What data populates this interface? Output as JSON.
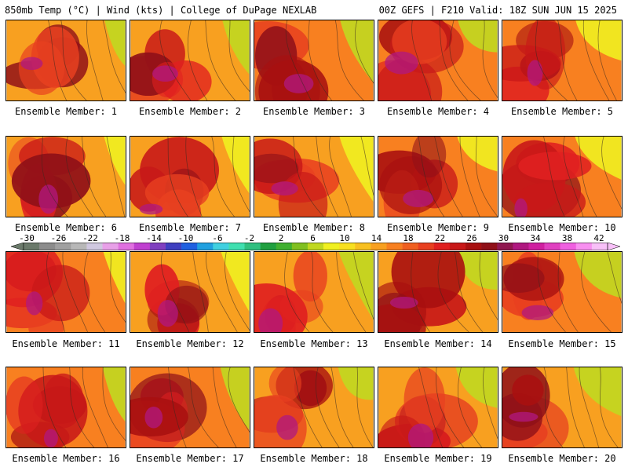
{
  "header": {
    "title_left": "850mb Temp (°C) | Wind (kts) | College of DuPage NEXLAB",
    "title_right": "00Z GEFS | F210 Valid: 18Z SUN JUN 15 2025"
  },
  "panels": [
    {
      "label": "Ensemble Member: 1"
    },
    {
      "label": "Ensemble Member: 2"
    },
    {
      "label": "Ensemble Member: 3"
    },
    {
      "label": "Ensemble Member: 4"
    },
    {
      "label": "Ensemble Member: 5"
    },
    {
      "label": "Ensemble Member: 6"
    },
    {
      "label": "Ensemble Member: 7"
    },
    {
      "label": "Ensemble Member: 8"
    },
    {
      "label": "Ensemble Member: 9"
    },
    {
      "label": "Ensemble Member: 10"
    },
    {
      "label": "Ensemble Member: 11"
    },
    {
      "label": "Ensemble Member: 12"
    },
    {
      "label": "Ensemble Member: 13"
    },
    {
      "label": "Ensemble Member: 14"
    },
    {
      "label": "Ensemble Member: 15"
    },
    {
      "label": "Ensemble Member: 16"
    },
    {
      "label": "Ensemble Member: 17"
    },
    {
      "label": "Ensemble Member: 18"
    },
    {
      "label": "Ensemble Member: 19"
    },
    {
      "label": "Ensemble Member: 20"
    }
  ],
  "colorbar": {
    "ticks": [
      "-30",
      "-26",
      "-22",
      "-18",
      "-14",
      "-10",
      "-6",
      "-2",
      "2",
      "6",
      "10",
      "14",
      "18",
      "22",
      "26",
      "30",
      "34",
      "38",
      "42"
    ],
    "colors": [
      "#6b7a6b",
      "#8c8c8c",
      "#a0a0a0",
      "#b8b8b8",
      "#d0c8e0",
      "#e8a0e8",
      "#e070e0",
      "#c040d0",
      "#8040c0",
      "#4040c0",
      "#2060e0",
      "#20a0e0",
      "#40d0e0",
      "#40e0b0",
      "#30c080",
      "#20a040",
      "#40b030",
      "#80c020",
      "#c0d820",
      "#f0f020",
      "#f8e020",
      "#f8c020",
      "#f8a020",
      "#f88020",
      "#f06020",
      "#e84020",
      "#e02020",
      "#c81818",
      "#a81010",
      "#901018",
      "#901850",
      "#b01880",
      "#d020a0",
      "#e040c0",
      "#f060e0",
      "#f890f0",
      "#f8c0f8"
    ]
  }
}
